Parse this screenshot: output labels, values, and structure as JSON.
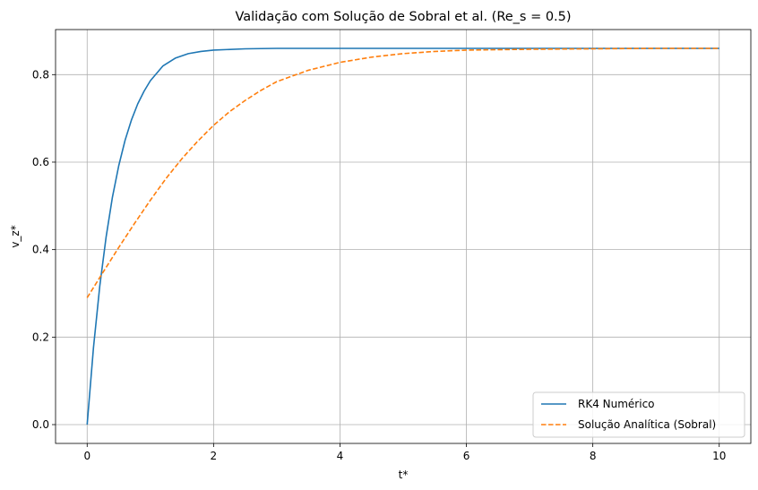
{
  "chart_data": {
    "type": "line",
    "title": "Validação com Solução de Sobral et al. (Re_s = 0.5)",
    "xlabel": "t*",
    "ylabel": "v_z*",
    "xlim": [
      -0.5,
      10.5
    ],
    "ylim": [
      -0.043,
      0.903
    ],
    "xticks": [
      0,
      2,
      4,
      6,
      8,
      10
    ],
    "xtick_labels": [
      "0",
      "2",
      "4",
      "6",
      "8",
      "10"
    ],
    "yticks": [
      0.0,
      0.2,
      0.4,
      0.6,
      0.8
    ],
    "ytick_labels": [
      "0.0",
      "0.2",
      "0.4",
      "0.6",
      "0.8"
    ],
    "grid": true,
    "legend_position": "lower-right",
    "series": [
      {
        "name": "RK4 Numérico",
        "style": "solid",
        "color": "#1f77b4",
        "x": [
          0,
          0.1,
          0.2,
          0.3,
          0.4,
          0.5,
          0.6,
          0.7,
          0.8,
          0.9,
          1.0,
          1.2,
          1.4,
          1.6,
          1.8,
          2.0,
          2.5,
          3.0,
          4.0,
          5.0,
          6.0,
          8.0,
          10.0
        ],
        "y": [
          0.0,
          0.176,
          0.317,
          0.429,
          0.52,
          0.592,
          0.65,
          0.696,
          0.733,
          0.762,
          0.786,
          0.82,
          0.838,
          0.848,
          0.853,
          0.856,
          0.859,
          0.86,
          0.86,
          0.86,
          0.86,
          0.86,
          0.86
        ]
      },
      {
        "name": "Solução Analítica (Sobral)",
        "style": "dashed",
        "color": "#ff7f0e",
        "x": [
          0,
          0.25,
          0.5,
          0.75,
          1.0,
          1.25,
          1.5,
          1.75,
          2.0,
          2.25,
          2.5,
          2.75,
          3.0,
          3.5,
          4.0,
          4.5,
          5.0,
          5.5,
          6.0,
          7.0,
          8.0,
          9.0,
          10.0
        ],
        "y": [
          0.29,
          0.348,
          0.405,
          0.46,
          0.513,
          0.563,
          0.608,
          0.648,
          0.684,
          0.715,
          0.741,
          0.764,
          0.784,
          0.81,
          0.828,
          0.84,
          0.848,
          0.853,
          0.856,
          0.858,
          0.859,
          0.86,
          0.86
        ]
      }
    ]
  }
}
